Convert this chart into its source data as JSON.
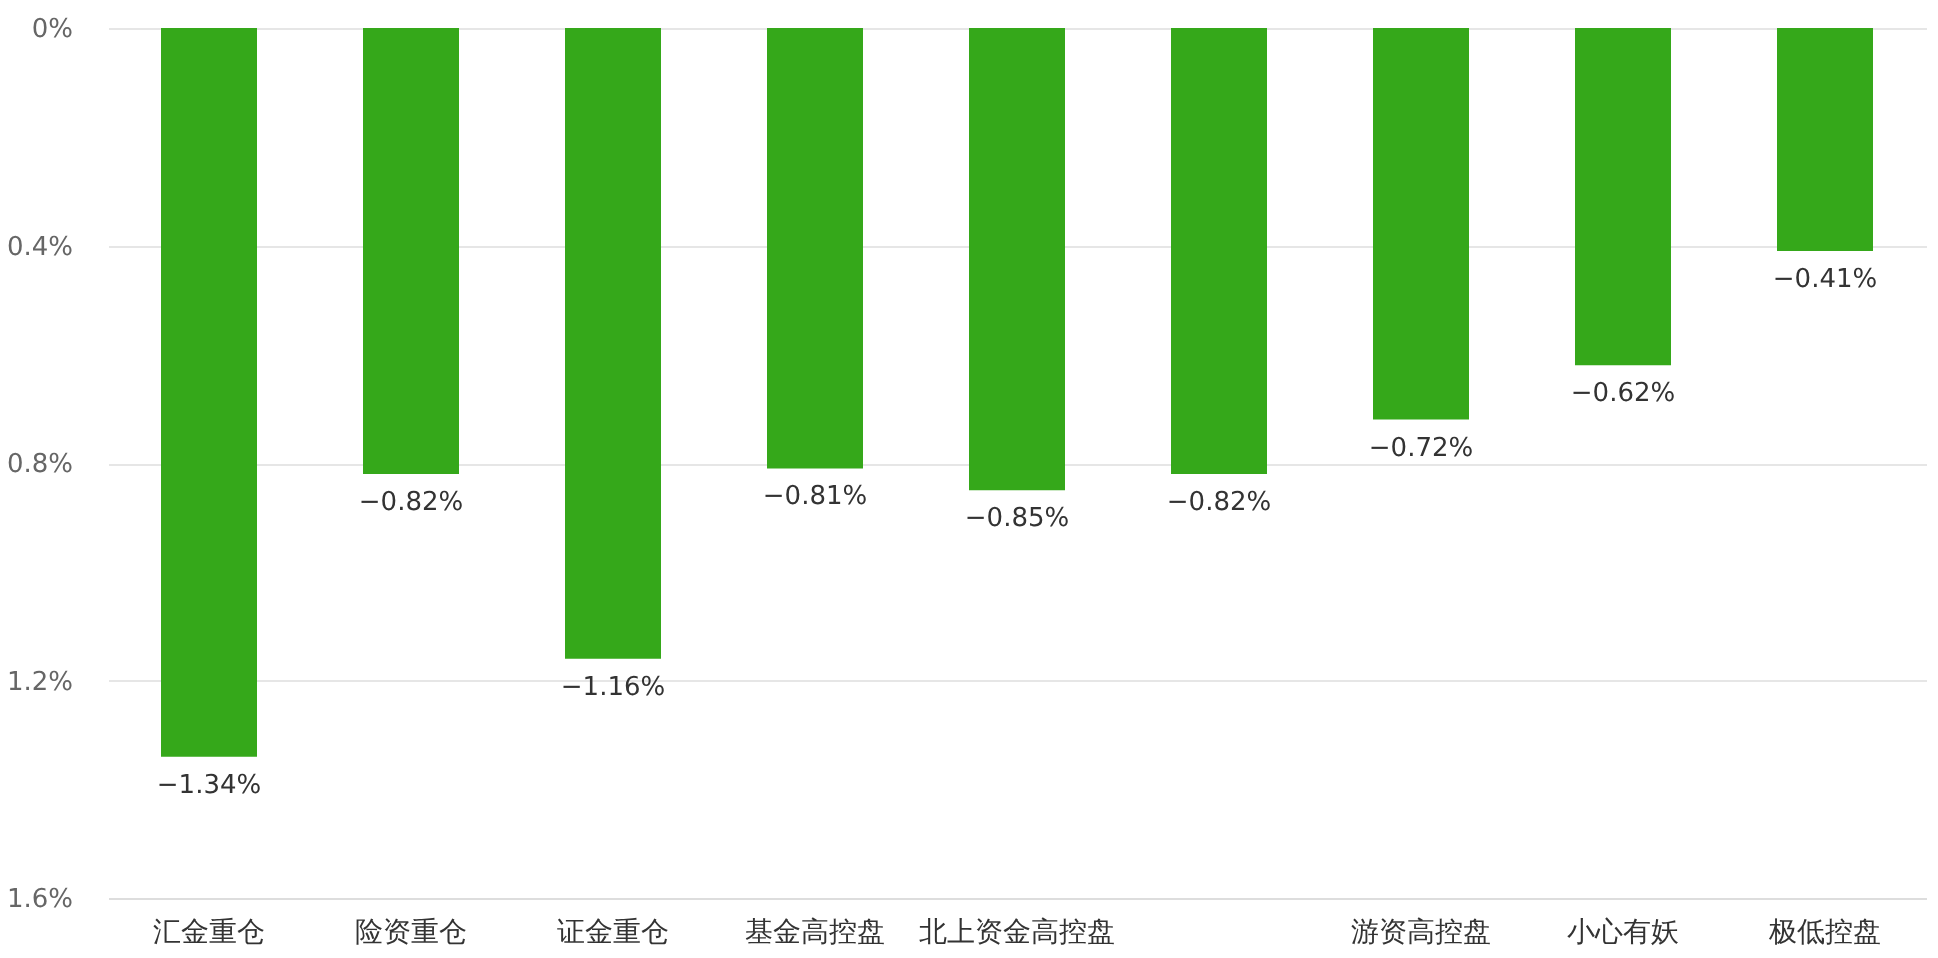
{
  "chart_data": {
    "type": "bar",
    "categories": [
      "汇金重仓",
      "险资重仓",
      "证金重仓",
      "基金高控盘",
      "北上资金高控盘",
      null,
      "游资高控盘",
      "小心有妖",
      "极低控盘"
    ],
    "values": [
      -1.34,
      -0.82,
      -1.16,
      -0.81,
      -0.85,
      -0.82,
      -0.72,
      -0.62,
      -0.41
    ],
    "value_labels": [
      "−1.34%",
      "−0.82%",
      "−1.16%",
      "−0.81%",
      "−0.85%",
      "−0.82%",
      "−0.72%",
      "−0.62%",
      "−0.41%"
    ],
    "color": "#35a81a",
    "ylim": [
      -1.6,
      0
    ],
    "yticks": [
      {
        "value": 0,
        "label": "0%"
      },
      {
        "value": -0.4,
        "label": "0.4%"
      },
      {
        "value": -0.8,
        "label": "0.8%"
      },
      {
        "value": -1.2,
        "label": "1.2%"
      },
      {
        "value": -1.6,
        "label": "1.6%"
      }
    ],
    "grid": "y"
  }
}
